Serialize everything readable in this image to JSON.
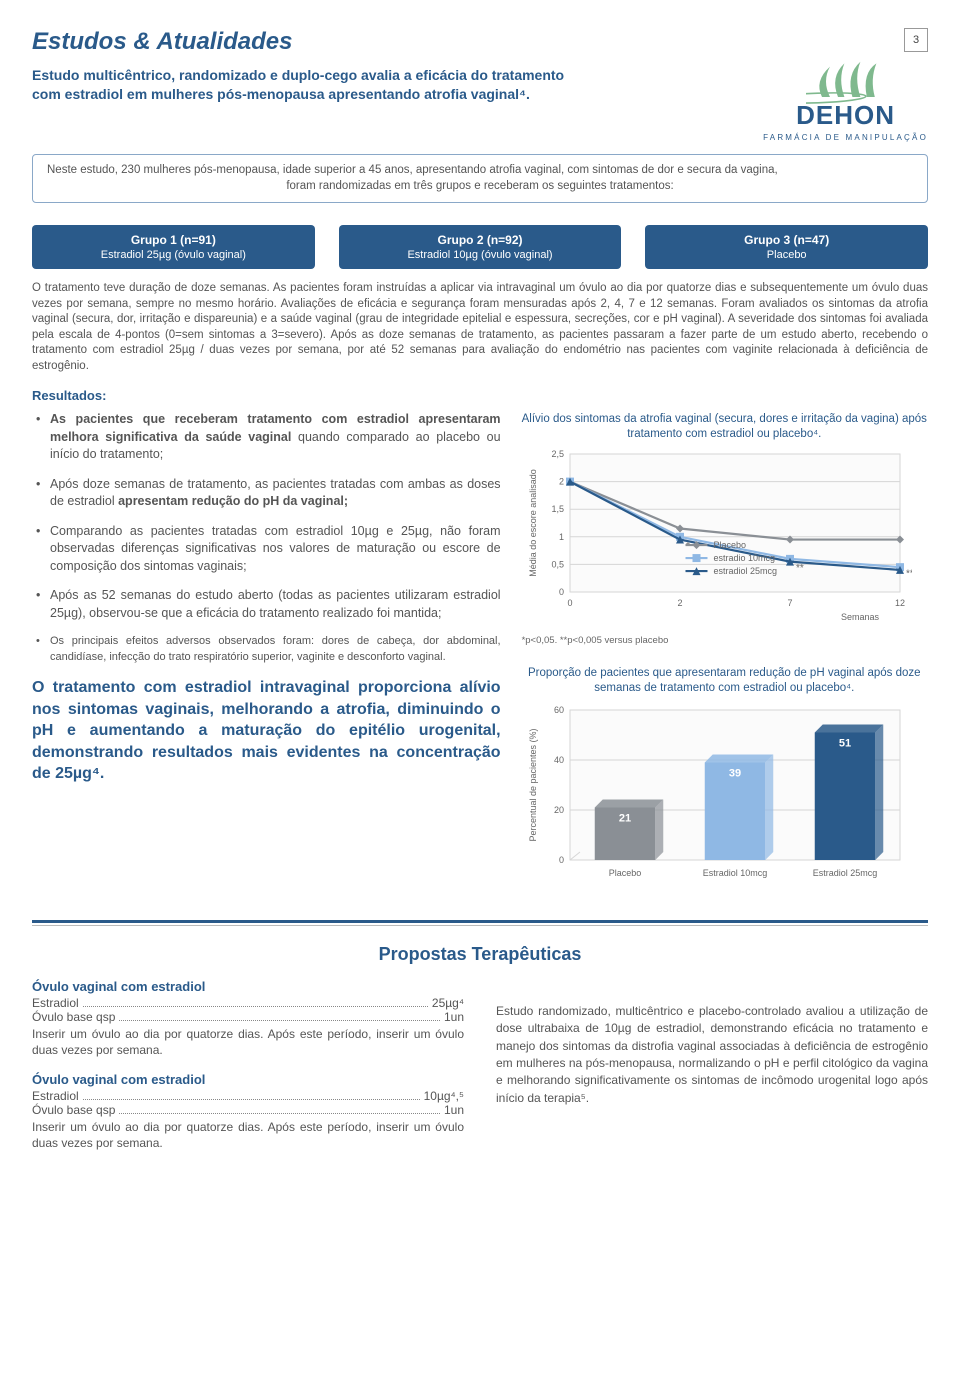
{
  "page_number": "3",
  "header": {
    "title": "Estudos & Atualidades",
    "subtitle": "Estudo multicêntrico, randomizado e duplo-cego avalia a eficácia do tratamento com estradiol em mulheres pós-menopausa apresentando atrofia vaginal⁴."
  },
  "logo": {
    "name": "DEHON",
    "tag": "FARMÁCIA DE MANIPULAÇÃO",
    "green": "#7fb98e",
    "blue": "#2a5a8a"
  },
  "intro_box": {
    "line1": "Neste estudo, 230 mulheres pós-menopausa, idade superior a 45 anos, apresentando atrofia vaginal, com sintomas de dor e secura da vagina,",
    "line2": "foram randomizadas em três grupos e receberam os seguintes tratamentos:"
  },
  "groups": [
    {
      "title": "Grupo 1 (n=91)",
      "sub": "Estradiol 25µg (óvulo vaginal)"
    },
    {
      "title": "Grupo 2 (n=92)",
      "sub": "Estradiol 10µg (óvulo vaginal)"
    },
    {
      "title": "Grupo 3 (n=47)",
      "sub": "Placebo"
    }
  ],
  "body_paragraph": "O tratamento teve duração de doze semanas. As pacientes foram instruídas a aplicar via intravaginal um óvulo ao dia por quatorze dias e subsequentemente um óvulo duas vezes por semana, sempre no mesmo horário. Avaliações de eficácia e segurança foram mensuradas após 2, 4, 7 e 12 semanas. Foram avaliados os sintomas da atrofia vaginal (secura, dor, irritação e dispareunia) e a saúde vaginal (grau de integridade epitelial e espessura, secreções, cor e pH vaginal). A severidade dos sintomas foi avaliada pela escala de 4-pontos (0=sem sintomas a 3=severo). Após as doze semanas de tratamento, as pacientes passaram a fazer parte de um estudo aberto, recebendo o tratamento com estradiol 25µg / duas vezes por semana, por até 52 semanas para avaliação do endométrio nas pacientes com vaginite relacionada à deficiência de estrogênio.",
  "results_label": "Resultados:",
  "bullets": {
    "b1_pre": "As pacientes que receberam tratamento com estradiol apresentaram melhora significativa da saúde vaginal",
    "b1_post": " quando comparado ao placebo ou início do tratamento;",
    "b2_pre": "Após doze semanas de tratamento, as pacientes tratadas com ambas as doses de estradiol ",
    "b2_bold": "apresentam redução do pH da vaginal;",
    "b3": "Comparando as pacientes tratadas com estradiol 10µg e 25µg, não foram observadas diferenças significativas nos valores de maturação ou escore de composição dos sintomas vaginais;",
    "b4": "Após as 52 semanas do estudo aberto (todas as pacientes utilizaram estradiol 25µg), observou-se que a eficácia do tratamento realizado foi mantida;",
    "b5": "Os principais efeitos adversos observados foram: dores de cabeça, dor abdominal, candidíase, infecção do trato respiratório superior, vaginite e desconforto vaginal."
  },
  "conclusion": "O tratamento com estradiol intravaginal proporciona alívio nos sintomas vaginais, melhorando a atrofia, diminuindo o pH e aumentando a maturação do epitélio urogenital, demonstrando resultados mais evidentes na concentração de 25µg⁴.",
  "line_chart": {
    "type": "line",
    "title": "Alívio dos sintomas da atrofia vaginal (secura, dores e irritação da vagina) após tratamento com estradiol ou placebo⁴.",
    "x_label": "Semanas",
    "y_label": "Média do escore analisado",
    "x_ticks": [
      0,
      2,
      7,
      12
    ],
    "y_ticks": [
      0,
      0.5,
      1,
      1.5,
      2,
      2.5
    ],
    "ylim": [
      0,
      2.5
    ],
    "series": [
      {
        "name": "Placebo",
        "color": "#8a8f95",
        "marker": "diamond",
        "values": [
          2.0,
          1.15,
          0.95,
          0.95
        ]
      },
      {
        "name": "estradio 10mcg",
        "color": "#8fb8e4",
        "marker": "square",
        "values": [
          2.0,
          1.0,
          0.6,
          0.45
        ]
      },
      {
        "name": "estradiol 25mcg",
        "color": "#2a5a8a",
        "marker": "triangle",
        "values": [
          2.0,
          0.95,
          0.55,
          0.4
        ]
      }
    ],
    "annotations": [
      {
        "x": 2,
        "y": 0.85,
        "text": "*"
      },
      {
        "x": 7,
        "y": 0.45,
        "text": "**"
      },
      {
        "x": 12,
        "y": 0.35,
        "text": "**"
      }
    ],
    "footnote": "*p<0,05. **p<0,005 versus placebo",
    "grid_color": "#d6d6d6",
    "bg": "#fbfbfb",
    "axis_fontsize": 9,
    "line_width": 2.2
  },
  "bar_chart": {
    "type": "bar",
    "title": "Proporção de pacientes que apresentaram redução de pH vaginal após doze semanas de tratamento com estradiol ou placebo⁴.",
    "y_label": "Percentual de pacientes (%)",
    "y_ticks": [
      0,
      20,
      40,
      60
    ],
    "ylim": [
      0,
      60
    ],
    "categories": [
      "Placebo",
      "Estradiol 10mcg",
      "Estradiol 25mcg"
    ],
    "values": [
      21,
      39,
      51
    ],
    "bar_colors": [
      "#8a8f95",
      "#8fb8e4",
      "#2a5a8a"
    ],
    "value_label_color": "#ffffff",
    "grid_color": "#d6d6d6",
    "bg": "#fbfbfb",
    "axis_fontsize": 9,
    "bar_width": 0.55
  },
  "section2_title": "Propostas Terapêuticas",
  "proposals": [
    {
      "head": "Óvulo vaginal com estradiol",
      "rows": [
        {
          "left": "Estradiol",
          "right": "25µg⁴"
        },
        {
          "left": "Óvulo base qsp",
          "right": "1un"
        }
      ],
      "inst": "Inserir um óvulo ao dia por quatorze dias. Após este período, inserir um óvulo duas vezes por semana."
    },
    {
      "head": "Óvulo vaginal com estradiol",
      "rows": [
        {
          "left": "Estradiol",
          "right": "10µg⁴,⁵"
        },
        {
          "left": "Óvulo base qsp",
          "right": "1un"
        }
      ],
      "inst": "Inserir um óvulo ao dia por quatorze dias. Após este período, inserir um óvulo duas vezes por semana."
    }
  ],
  "proposal_right": "Estudo randomizado, multicêntrico e placebo-controlado avaliou a utilização de dose ultrabaixa de 10µg de estradiol, demonstrando eficácia no tratamento e manejo dos sintomas da distrofia vaginal associadas à deficiência de estrogênio em mulheres na pós-menopausa, normalizando o pH e perfil citológico da vagina e melhorando significativamente os sintomas de incômodo urogenital logo após início da terapia⁵.",
  "colors": {
    "brand_blue": "#2a5a8a",
    "text_gray": "#555555"
  }
}
